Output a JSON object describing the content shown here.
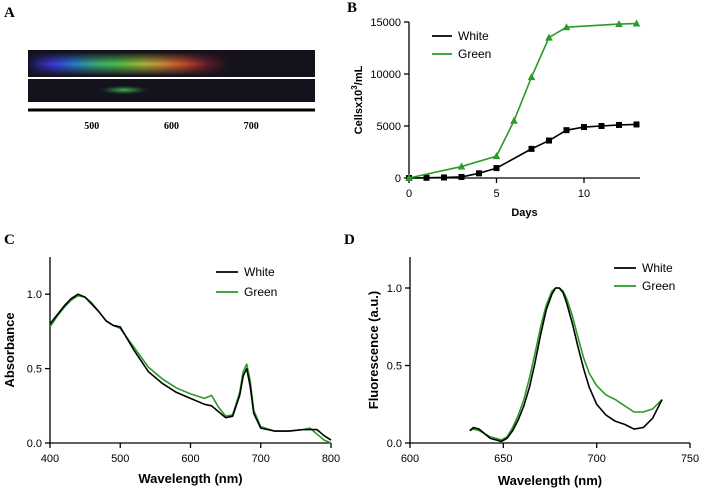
{
  "colors": {
    "white": "#000000",
    "green": "#2a9a2a"
  },
  "spectrum": {
    "letter": "A",
    "ticks": [
      "500",
      "600",
      "700"
    ],
    "tick_values": [
      500,
      600,
      700
    ],
    "range_nm": [
      420,
      780
    ]
  },
  "chart_data": [
    {
      "id": "B",
      "letter": "B",
      "type": "line",
      "xlabel": "Days",
      "ylabel": "Cellsx10³/mL",
      "ylabel_main": "Cellsx10",
      "ylabel_sup": "3",
      "ylabel_tail": "/mL",
      "xlim": [
        0,
        13.2
      ],
      "ylim": [
        0,
        15000
      ],
      "xticks": [
        0,
        5,
        10
      ],
      "xtick_labels": [
        "0",
        "5",
        "10"
      ],
      "yticks": [
        0,
        5000,
        10000,
        15000
      ],
      "ytick_labels": [
        "0",
        "5000",
        "10000",
        "15000"
      ],
      "legend": [
        "White",
        "Green"
      ],
      "series": [
        {
          "name": "White",
          "marker": "square",
          "x": [
            0,
            1,
            2,
            3,
            4,
            5,
            7,
            8,
            9,
            10,
            11,
            12,
            13
          ],
          "y": [
            0,
            20,
            50,
            100,
            450,
            950,
            2800,
            3600,
            4600,
            4900,
            5000,
            5100,
            5150
          ]
        },
        {
          "name": "Green",
          "marker": "triangle",
          "x": [
            0,
            3,
            5,
            6,
            7,
            8,
            9,
            12,
            13
          ],
          "y": [
            0,
            1100,
            2100,
            5500,
            9700,
            13500,
            14500,
            14800,
            14850
          ]
        }
      ]
    },
    {
      "id": "C",
      "letter": "C",
      "type": "line",
      "xlabel": "Wavelength (nm)",
      "ylabel": "Absorbance",
      "xlim": [
        400,
        800
      ],
      "ylim": [
        0,
        1.25
      ],
      "xticks": [
        400,
        500,
        600,
        700,
        800
      ],
      "xtick_labels": [
        "400",
        "500",
        "600",
        "700",
        "800"
      ],
      "yticks": [
        0,
        0.5,
        1.0
      ],
      "ytick_labels": [
        "0.0",
        "0.5",
        "1.0"
      ],
      "legend": [
        "White",
        "Green"
      ],
      "series": [
        {
          "name": "White",
          "x": [
            400,
            410,
            420,
            430,
            440,
            450,
            460,
            470,
            480,
            490,
            500,
            520,
            540,
            560,
            580,
            600,
            620,
            630,
            640,
            650,
            660,
            670,
            675,
            680,
            685,
            690,
            700,
            720,
            740,
            760,
            770,
            780,
            790,
            800
          ],
          "y": [
            0.8,
            0.86,
            0.92,
            0.97,
            1.0,
            0.98,
            0.93,
            0.88,
            0.82,
            0.79,
            0.78,
            0.62,
            0.48,
            0.4,
            0.34,
            0.3,
            0.26,
            0.25,
            0.21,
            0.17,
            0.18,
            0.32,
            0.45,
            0.5,
            0.38,
            0.2,
            0.1,
            0.08,
            0.08,
            0.09,
            0.09,
            0.09,
            0.05,
            0.02
          ]
        },
        {
          "name": "Green",
          "x": [
            400,
            410,
            420,
            430,
            440,
            450,
            460,
            470,
            480,
            490,
            500,
            520,
            540,
            560,
            580,
            600,
            620,
            630,
            640,
            650,
            660,
            670,
            675,
            680,
            685,
            690,
            700,
            720,
            740,
            760,
            770,
            780,
            790,
            800
          ],
          "y": [
            0.78,
            0.85,
            0.91,
            0.96,
            0.99,
            0.98,
            0.94,
            0.88,
            0.82,
            0.79,
            0.77,
            0.64,
            0.51,
            0.43,
            0.37,
            0.33,
            0.3,
            0.32,
            0.24,
            0.18,
            0.19,
            0.34,
            0.48,
            0.53,
            0.42,
            0.22,
            0.11,
            0.08,
            0.08,
            0.09,
            0.1,
            0.06,
            0.02,
            0.0
          ]
        }
      ]
    },
    {
      "id": "D",
      "letter": "D",
      "type": "line",
      "xlabel": "Wavelength (nm)",
      "ylabel": "Fluorescence (a.u.)",
      "xlim": [
        600,
        750
      ],
      "ylim": [
        0,
        1.2
      ],
      "xticks": [
        600,
        650,
        700,
        750
      ],
      "xtick_labels": [
        "600",
        "650",
        "700",
        "750"
      ],
      "yticks": [
        0,
        0.5,
        1.0
      ],
      "ytick_labels": [
        "0.0",
        "0.5",
        "1.0"
      ],
      "legend": [
        "White",
        "Green"
      ],
      "series": [
        {
          "name": "White",
          "x": [
            632,
            634,
            637,
            640,
            643,
            646,
            649,
            652,
            655,
            658,
            661,
            664,
            667,
            670,
            673,
            676,
            678,
            680,
            682,
            684,
            687,
            690,
            693,
            696,
            700,
            705,
            710,
            715,
            720,
            725,
            730,
            735
          ],
          "y": [
            0.08,
            0.1,
            0.09,
            0.06,
            0.03,
            0.02,
            0.01,
            0.03,
            0.08,
            0.15,
            0.24,
            0.36,
            0.52,
            0.7,
            0.86,
            0.96,
            1.0,
            1.0,
            0.97,
            0.9,
            0.77,
            0.62,
            0.48,
            0.36,
            0.25,
            0.18,
            0.14,
            0.12,
            0.09,
            0.1,
            0.16,
            0.28
          ]
        },
        {
          "name": "Green",
          "x": [
            632,
            634,
            637,
            640,
            643,
            646,
            649,
            652,
            655,
            658,
            661,
            664,
            667,
            670,
            673,
            676,
            678,
            680,
            682,
            684,
            687,
            690,
            693,
            696,
            700,
            705,
            710,
            715,
            720,
            725,
            730,
            735
          ],
          "y": [
            0.08,
            0.09,
            0.08,
            0.06,
            0.04,
            0.03,
            0.02,
            0.04,
            0.1,
            0.18,
            0.28,
            0.42,
            0.58,
            0.75,
            0.89,
            0.98,
            1.0,
            1.0,
            0.98,
            0.93,
            0.82,
            0.68,
            0.55,
            0.45,
            0.37,
            0.31,
            0.28,
            0.24,
            0.2,
            0.2,
            0.22,
            0.28
          ]
        }
      ]
    }
  ]
}
